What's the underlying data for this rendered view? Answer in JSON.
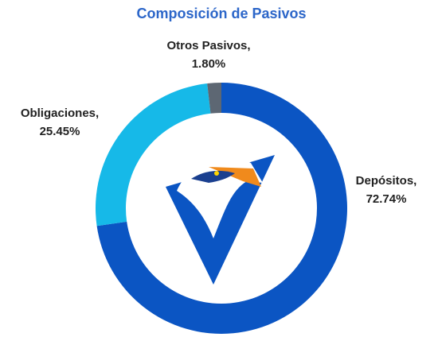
{
  "chart_data": {
    "type": "donut",
    "title": "Composición de Pasivos",
    "categories": [
      "Depósitos,",
      "Obligaciones,",
      "Otros Pasivos,"
    ],
    "values": [
      72.74,
      25.45,
      1.8
    ],
    "value_labels": [
      "72.74%",
      "25.45%",
      "1.80%"
    ],
    "colors": [
      "#0b55c3",
      "#16b9e8",
      "#5d6773"
    ]
  }
}
